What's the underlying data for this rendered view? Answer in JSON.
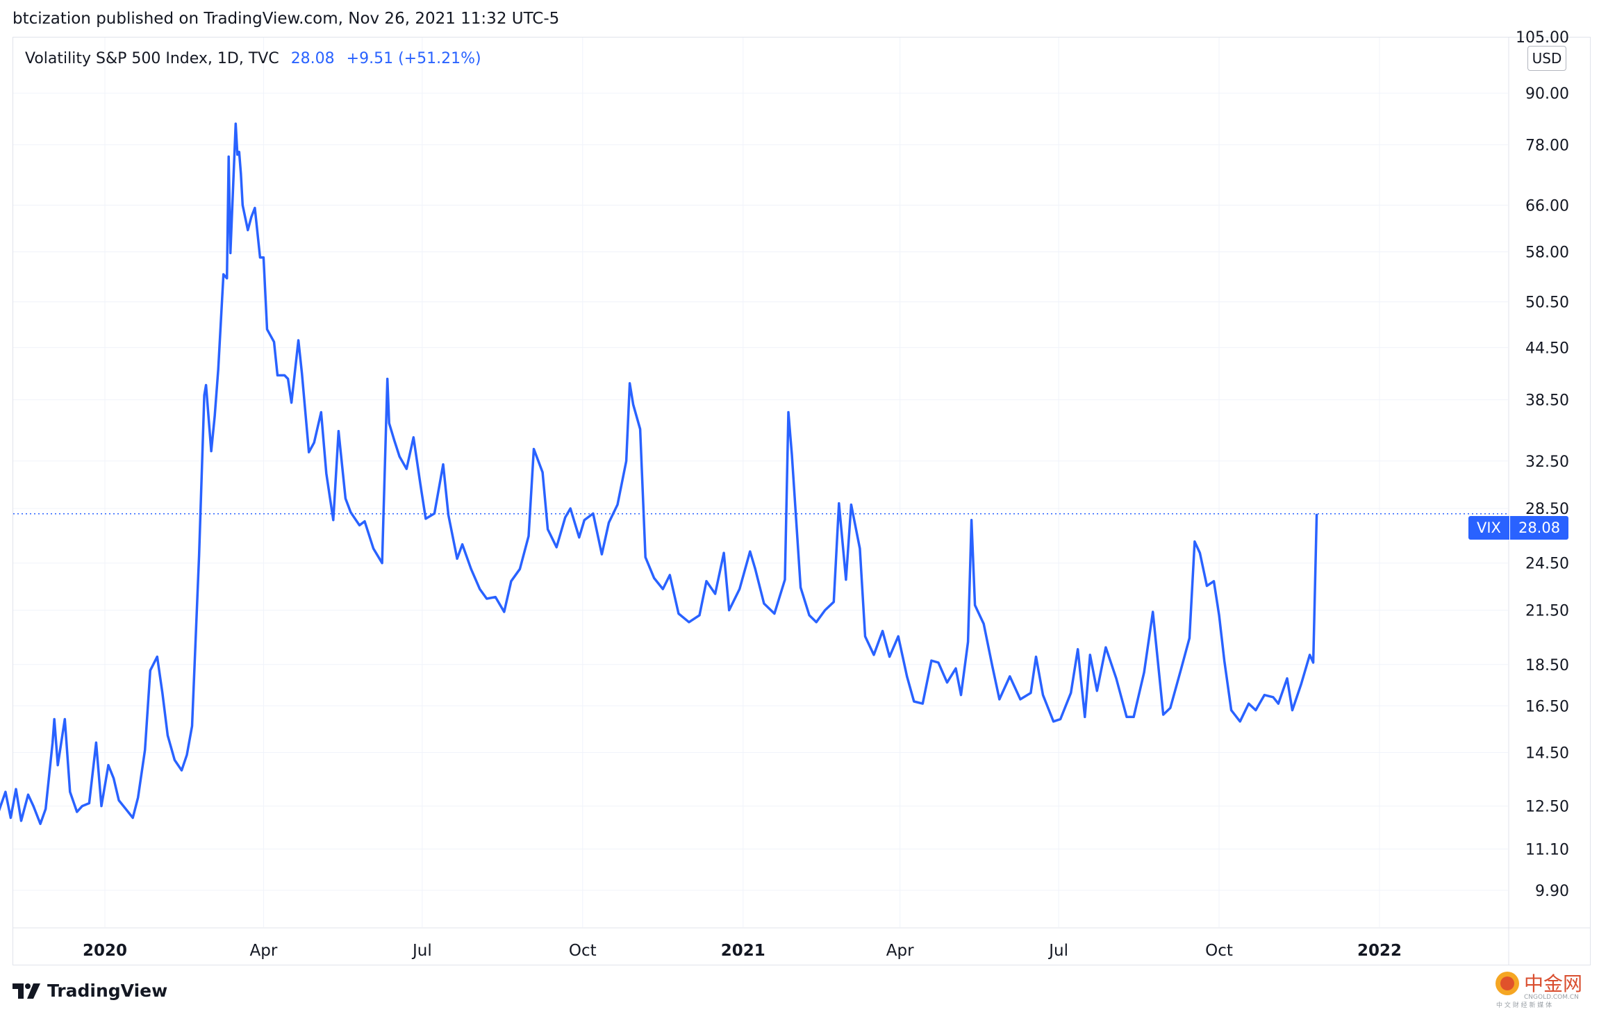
{
  "header": {
    "published_line": "btcization published on TradingView.com, Nov 26, 2021 11:32 UTC-5"
  },
  "legend": {
    "symbol": "Volatility S&P 500 Index, 1D, TVC",
    "last": "28.08",
    "change": "+9.51 (+51.21%)"
  },
  "price_scale": {
    "currency": "USD",
    "top_partial_label": "105.00"
  },
  "price_tag": {
    "symbol": "VIX",
    "value": "28.08"
  },
  "footer": {
    "brand": "TradingView"
  },
  "watermark": {
    "chinese": "中金网",
    "site": "CNGOLD.COM.CN",
    "tagline": "中 文 财 经 新 媒 体"
  },
  "colors": {
    "line": "#2962ff",
    "grid": "#f0f3fa",
    "text": "#131722",
    "border": "#e0e3eb"
  },
  "chart_data": {
    "type": "line",
    "title": "Volatility S&P 500 Index, 1D, TVC",
    "xlabel": "",
    "ylabel": "",
    "y_scale": "log",
    "ylim": [
      9.2,
      105
    ],
    "x_tick_labels": [
      {
        "label": "2020",
        "date": "2020-01-01",
        "bold": true
      },
      {
        "label": "Apr",
        "date": "2020-04-01",
        "bold": false
      },
      {
        "label": "Jul",
        "date": "2020-07-01",
        "bold": false
      },
      {
        "label": "Oct",
        "date": "2020-10-01",
        "bold": false
      },
      {
        "label": "2021",
        "date": "2021-01-01",
        "bold": true
      },
      {
        "label": "Apr",
        "date": "2021-04-01",
        "bold": false
      },
      {
        "label": "Jul",
        "date": "2021-07-01",
        "bold": false
      },
      {
        "label": "Oct",
        "date": "2021-10-01",
        "bold": false
      },
      {
        "label": "2022",
        "date": "2022-01-01",
        "bold": true
      }
    ],
    "y_tick_labels": [
      "90.00",
      "78.00",
      "66.00",
      "58.00",
      "50.50",
      "44.50",
      "38.50",
      "32.50",
      "28.50",
      "24.50",
      "21.50",
      "18.50",
      "16.50",
      "14.50",
      "12.50",
      "11.10",
      "9.90"
    ],
    "last_value": 28.08,
    "grid": true,
    "series": [
      {
        "dates": [
          "2019-11-01",
          "2019-11-05",
          "2019-11-08",
          "2019-11-11",
          "2019-11-14",
          "2019-11-18",
          "2019-11-21",
          "2019-11-25",
          "2019-11-28",
          "2019-12-02",
          "2019-12-03",
          "2019-12-05",
          "2019-12-09",
          "2019-12-12",
          "2019-12-16",
          "2019-12-19",
          "2019-12-23",
          "2019-12-27",
          "2019-12-30",
          "2020-01-03",
          "2020-01-06",
          "2020-01-09",
          "2020-01-13",
          "2020-01-17",
          "2020-01-20",
          "2020-01-24",
          "2020-01-27",
          "2020-01-31",
          "2020-02-03",
          "2020-02-06",
          "2020-02-10",
          "2020-02-14",
          "2020-02-17",
          "2020-02-20",
          "2020-02-24",
          "2020-02-27",
          "2020-02-28",
          "2020-03-02",
          "2020-03-04",
          "2020-03-06",
          "2020-03-09",
          "2020-03-11",
          "2020-03-12",
          "2020-03-13",
          "2020-03-16",
          "2020-03-17",
          "2020-03-18",
          "2020-03-19",
          "2020-03-20",
          "2020-03-23",
          "2020-03-25",
          "2020-03-27",
          "2020-03-30",
          "2020-04-01",
          "2020-04-03",
          "2020-04-07",
          "2020-04-09",
          "2020-04-13",
          "2020-04-15",
          "2020-04-17",
          "2020-04-21",
          "2020-04-23",
          "2020-04-27",
          "2020-04-30",
          "2020-05-04",
          "2020-05-07",
          "2020-05-11",
          "2020-05-14",
          "2020-05-18",
          "2020-05-21",
          "2020-05-26",
          "2020-05-29",
          "2020-06-03",
          "2020-06-08",
          "2020-06-11",
          "2020-06-12",
          "2020-06-15",
          "2020-06-18",
          "2020-06-22",
          "2020-06-26",
          "2020-06-30",
          "2020-07-03",
          "2020-07-08",
          "2020-07-13",
          "2020-07-16",
          "2020-07-21",
          "2020-07-24",
          "2020-07-29",
          "2020-08-03",
          "2020-08-07",
          "2020-08-12",
          "2020-08-17",
          "2020-08-21",
          "2020-08-26",
          "2020-08-31",
          "2020-09-03",
          "2020-09-08",
          "2020-09-11",
          "2020-09-16",
          "2020-09-21",
          "2020-09-24",
          "2020-09-29",
          "2020-10-02",
          "2020-10-07",
          "2020-10-12",
          "2020-10-16",
          "2020-10-21",
          "2020-10-26",
          "2020-10-28",
          "2020-10-30",
          "2020-11-03",
          "2020-11-06",
          "2020-11-11",
          "2020-11-16",
          "2020-11-20",
          "2020-11-25",
          "2020-12-01",
          "2020-12-07",
          "2020-12-11",
          "2020-12-16",
          "2020-12-21",
          "2020-12-24",
          "2020-12-30",
          "2021-01-05",
          "2021-01-08",
          "2021-01-13",
          "2021-01-19",
          "2021-01-25",
          "2021-01-27",
          "2021-01-29",
          "2021-02-03",
          "2021-02-08",
          "2021-02-12",
          "2021-02-17",
          "2021-02-22",
          "2021-02-25",
          "2021-03-01",
          "2021-03-04",
          "2021-03-09",
          "2021-03-12",
          "2021-03-17",
          "2021-03-22",
          "2021-03-26",
          "2021-03-31",
          "2021-04-05",
          "2021-04-09",
          "2021-04-14",
          "2021-04-19",
          "2021-04-23",
          "2021-04-28",
          "2021-05-03",
          "2021-05-06",
          "2021-05-10",
          "2021-05-12",
          "2021-05-14",
          "2021-05-19",
          "2021-05-24",
          "2021-05-28",
          "2021-06-03",
          "2021-06-09",
          "2021-06-15",
          "2021-06-18",
          "2021-06-22",
          "2021-06-28",
          "2021-07-02",
          "2021-07-08",
          "2021-07-12",
          "2021-07-16",
          "2021-07-19",
          "2021-07-23",
          "2021-07-28",
          "2021-08-03",
          "2021-08-09",
          "2021-08-13",
          "2021-08-19",
          "2021-08-24",
          "2021-08-30",
          "2021-09-03",
          "2021-09-09",
          "2021-09-14",
          "2021-09-17",
          "2021-09-20",
          "2021-09-24",
          "2021-09-28",
          "2021-10-01",
          "2021-10-04",
          "2021-10-08",
          "2021-10-13",
          "2021-10-18",
          "2021-10-22",
          "2021-10-27",
          "2021-11-01",
          "2021-11-04",
          "2021-11-09",
          "2021-11-12",
          "2021-11-17",
          "2021-11-22",
          "2021-11-24",
          "2021-11-26"
        ],
        "values": [
          12.3,
          13.0,
          12.1,
          13.1,
          12.0,
          12.9,
          12.5,
          11.9,
          12.4,
          14.9,
          15.9,
          14.0,
          15.9,
          13.0,
          12.3,
          12.5,
          12.6,
          14.9,
          12.5,
          14.0,
          13.5,
          12.7,
          12.4,
          12.1,
          12.8,
          14.6,
          18.2,
          18.9,
          17.1,
          15.2,
          14.2,
          13.8,
          14.4,
          15.6,
          25.0,
          39.0,
          40.1,
          33.4,
          36.8,
          41.9,
          54.5,
          53.9,
          75.5,
          57.8,
          82.7,
          75.9,
          76.5,
          72.0,
          66.0,
          61.6,
          63.9,
          65.5,
          57.1,
          57.1,
          46.8,
          45.2,
          41.2,
          41.2,
          40.8,
          38.2,
          45.4,
          41.4,
          33.3,
          34.2,
          37.2,
          31.4,
          27.6,
          35.3,
          29.3,
          28.2,
          27.2,
          27.5,
          25.5,
          24.5,
          40.8,
          36.1,
          34.4,
          32.9,
          31.8,
          34.7,
          30.4,
          27.7,
          28.1,
          32.2,
          28.0,
          24.8,
          25.8,
          24.1,
          22.8,
          22.2,
          22.3,
          21.4,
          23.3,
          24.1,
          26.4,
          33.6,
          31.5,
          26.9,
          25.6,
          27.8,
          28.5,
          26.3,
          27.6,
          28.1,
          25.1,
          27.4,
          28.8,
          32.5,
          40.3,
          38.0,
          35.5,
          24.9,
          23.5,
          22.8,
          23.7,
          21.3,
          20.8,
          21.2,
          23.3,
          22.5,
          25.2,
          21.5,
          22.8,
          25.3,
          24.1,
          21.9,
          21.3,
          23.4,
          37.2,
          33.1,
          22.9,
          21.2,
          20.8,
          21.5,
          22.0,
          28.9,
          23.4,
          28.8,
          25.5,
          20.0,
          19.0,
          20.3,
          18.9,
          20.0,
          17.9,
          16.7,
          16.6,
          18.7,
          18.6,
          17.6,
          18.3,
          17.0,
          19.7,
          27.6,
          21.8,
          20.7,
          18.4,
          16.8,
          17.9,
          16.8,
          17.1,
          18.9,
          17.0,
          15.8,
          15.9,
          17.1,
          19.3,
          16.0,
          19.0,
          17.2,
          19.4,
          17.8,
          16.0,
          16.0,
          18.1,
          21.4,
          16.1,
          16.4,
          18.2,
          19.9,
          26.0,
          25.2,
          23.0,
          23.3,
          21.2,
          18.7,
          16.3,
          15.8,
          16.6,
          16.3,
          17.0,
          16.9,
          16.6,
          17.8,
          16.3,
          17.5,
          19.0,
          18.6,
          28.08
        ]
      }
    ]
  }
}
